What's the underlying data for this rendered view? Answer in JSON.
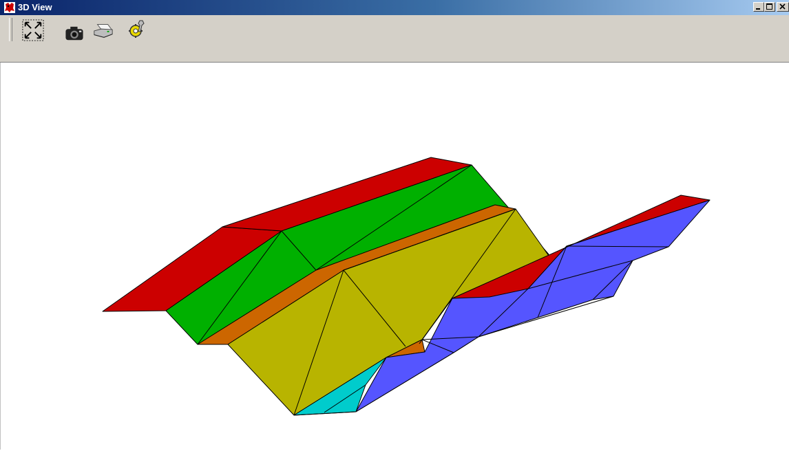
{
  "window": {
    "title": "3D View",
    "controls": [
      "minimize",
      "maximize",
      "close"
    ]
  },
  "toolbar": {
    "tools": [
      {
        "name": "zoom-extents-icon"
      },
      {
        "name": "camera-icon"
      },
      {
        "name": "print-icon"
      },
      {
        "name": "settings-tool-icon"
      }
    ]
  },
  "scene": {
    "colors": {
      "red": "#cc0000",
      "green": "#00b000",
      "orange": "#cc6600",
      "olive": "#b8b400",
      "cyan": "#00cccc",
      "blue": "#5555ff",
      "edge": "#000000"
    }
  }
}
